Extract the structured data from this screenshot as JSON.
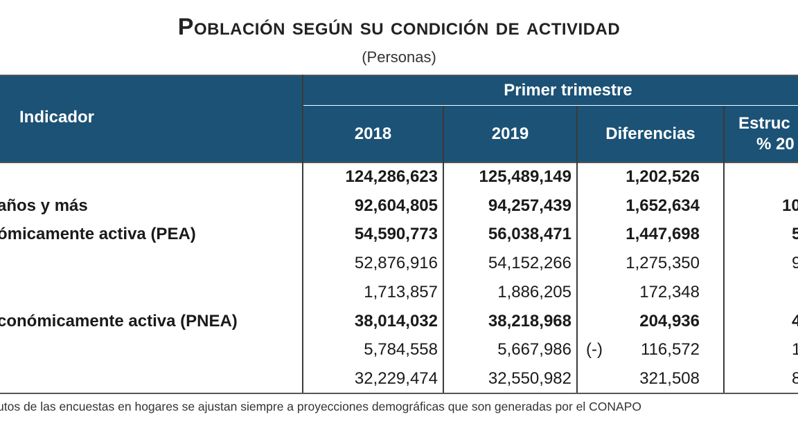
{
  "title": "Población según su condición de actividad",
  "subtitle": "(Personas)",
  "header": {
    "indicador": "Indicador",
    "group": "Primer trimestre",
    "col_2018": "2018",
    "col_2019": "2019",
    "col_dif": "Diferencias",
    "col_estruc_line1": "Estruc",
    "col_estruc_line2": "% 20"
  },
  "rows": [
    {
      "label": "",
      "v2018": "124,286,623",
      "v2019": "125,489,149",
      "neg": "",
      "dif": "1,202,526",
      "estruc": "",
      "bold": true
    },
    {
      "label": "años y más",
      "v2018": "92,604,805",
      "v2019": "94,257,439",
      "neg": "",
      "dif": "1,652,634",
      "estruc": "10",
      "bold": true
    },
    {
      "label": "ómicamente activa (PEA)",
      "v2018": "54,590,773",
      "v2019": "56,038,471",
      "neg": "",
      "dif": "1,447,698",
      "estruc": "5",
      "bold": true
    },
    {
      "label": "",
      "v2018": "52,876,916",
      "v2019": "54,152,266",
      "neg": "",
      "dif": "1,275,350",
      "estruc": "9",
      "bold": false
    },
    {
      "label": "",
      "v2018": "1,713,857",
      "v2019": "1,886,205",
      "neg": "",
      "dif": "172,348",
      "estruc": "",
      "bold": false
    },
    {
      "label": "conómicamente activa (PNEA)",
      "v2018": "38,014,032",
      "v2019": "38,218,968",
      "neg": "",
      "dif": "204,936",
      "estruc": "4",
      "bold": true
    },
    {
      "label": "",
      "v2018": "5,784,558",
      "v2019": "5,667,986",
      "neg": "(-)",
      "dif": "116,572",
      "estruc": "1",
      "bold": false
    },
    {
      "label": "",
      "v2018": "32,229,474",
      "v2019": "32,550,982",
      "neg": "",
      "dif": "321,508",
      "estruc": "8",
      "bold": false
    }
  ],
  "footnote": "utos de las encuestas en hogares se ajustan siempre a proyecciones demográficas que son generadas por el CONAPO",
  "colors": {
    "header_bg": "#1c5276",
    "header_text": "#ffffff"
  }
}
